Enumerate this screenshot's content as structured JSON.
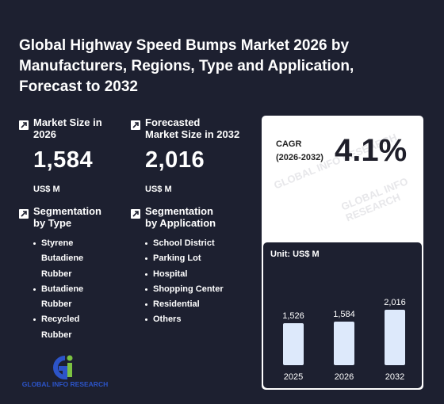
{
  "title": "Global Highway Speed Bumps Market 2026 by Manufacturers, Regions, Type and Application, Forecast to 2032",
  "market_size": {
    "label_line1": "Market Size in",
    "label_line2": "2026",
    "value": "1,584",
    "unit": "US$ M"
  },
  "forecast_size": {
    "label_line1": "Forecasted",
    "label_line2": "Market Size in 2032",
    "value": "2,016",
    "unit": "US$ M"
  },
  "seg_type": {
    "label_line1": "Segmentation",
    "label_line2": "by Type",
    "items": [
      "Styrene",
      "Butadiene",
      "Rubber",
      "Butadiene",
      "Rubber",
      "Recycled",
      "Rubber"
    ]
  },
  "seg_app": {
    "label_line1": "Segmentation",
    "label_line2": "by Application",
    "items": [
      "School District",
      "Parking Lot",
      "Hospital",
      "Shopping Center",
      "Residential",
      "Others"
    ]
  },
  "cagr": {
    "label_line1": "CAGR",
    "label_line2": "(2026-2032)",
    "value": "4.1%"
  },
  "logo": {
    "text": "GLOBAL INFO RESEARCH",
    "watermark": "GLOBAL INFO RESEARCH"
  },
  "colors": {
    "background": "#1d2030",
    "bar": "#dde9fb",
    "card": "#ffffff",
    "logo_blue": "#2c54c8",
    "logo_green": "#7cc242"
  },
  "chart_data": {
    "type": "bar",
    "unit_label": "Unit: US$ M",
    "categories": [
      "2025",
      "2026",
      "2032"
    ],
    "values": [
      1526,
      1584,
      2016
    ],
    "value_labels": [
      "1,526",
      "1,584",
      "2,016"
    ]
  }
}
